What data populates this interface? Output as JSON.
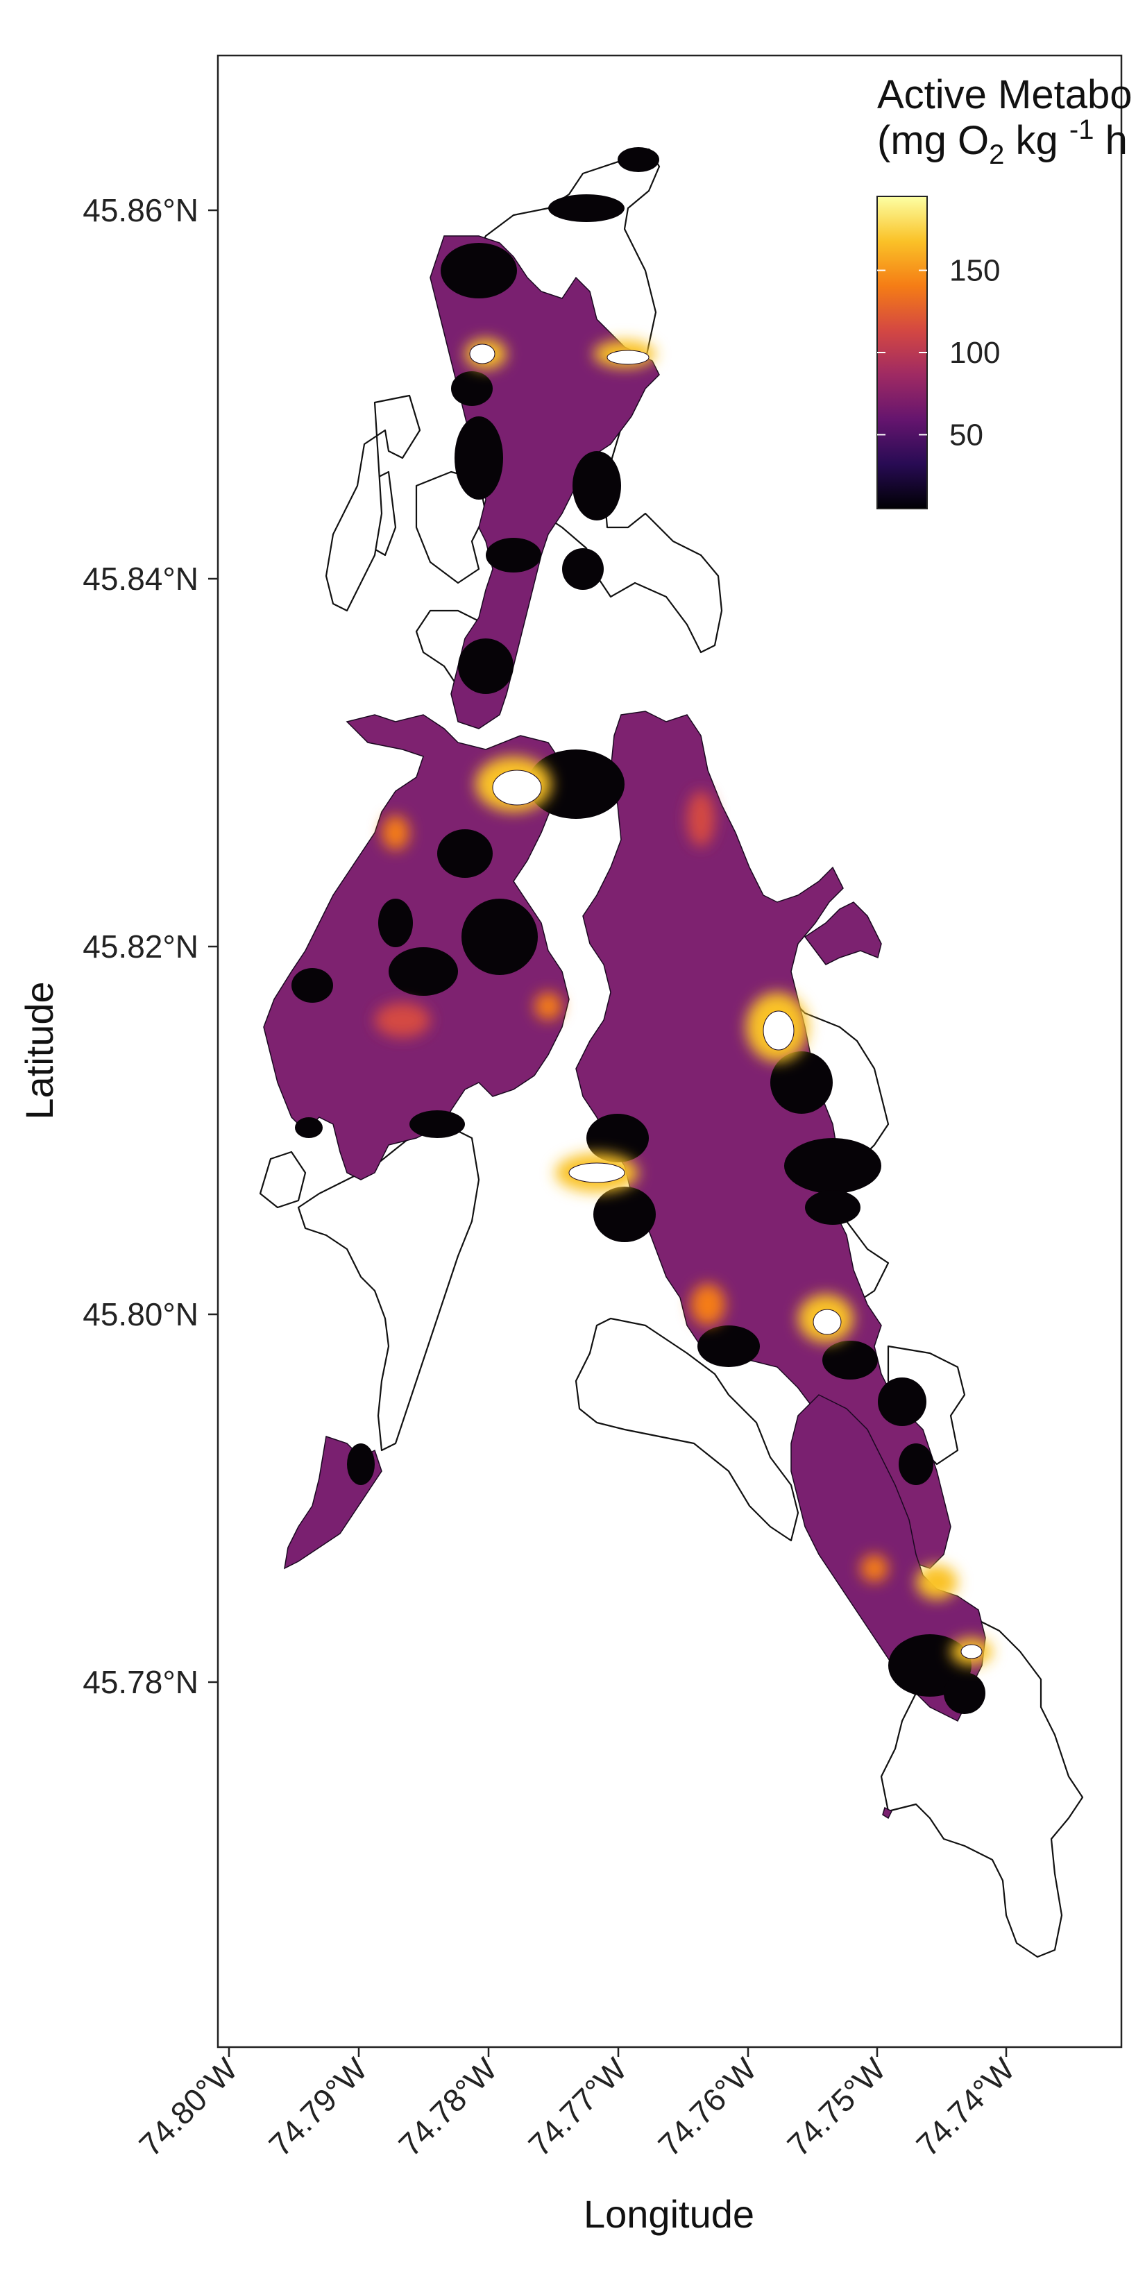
{
  "map": {
    "y_axis_title": "Latitude",
    "x_axis_title": "Longitude",
    "lat_ticks": [
      "45.86°N",
      "45.84°N",
      "45.82°N",
      "45.80°N",
      "45.78°N"
    ],
    "lon_ticks": [
      "74.80°W",
      "74.79°W",
      "74.78°W",
      "74.77°W",
      "74.76°W",
      "74.75°W",
      "74.74°W"
    ],
    "legend": {
      "title_line1": "Active Metabo",
      "title_line2_prefix": "(mg O",
      "title_line2_sub": "2",
      "title_line2_mid": " kg ",
      "title_line2_sup": "-1",
      "title_line2_suffix": " h",
      "ticks": [
        "150",
        "100",
        "50"
      ],
      "scale_min": 5,
      "scale_max": 195,
      "tick_values": [
        150,
        100,
        50
      ],
      "colormap": [
        "#000004",
        "#280b54",
        "#65156e",
        "#9f2a63",
        "#d44842",
        "#f57d15",
        "#fac228",
        "#fcffa4"
      ]
    },
    "colors": {
      "outline": "#111111",
      "low": "#050308",
      "mid": "#8a2a6c",
      "high": "#fff5c4"
    }
  }
}
